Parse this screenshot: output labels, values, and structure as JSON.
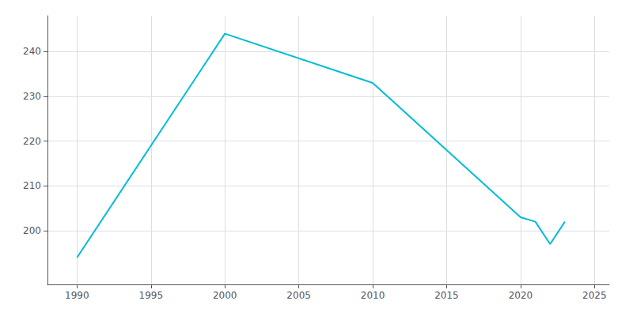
{
  "chart_data": {
    "type": "line",
    "x": [
      1990,
      2000,
      2010,
      2020,
      2021,
      2022,
      2023
    ],
    "values": [
      194,
      244,
      233,
      203,
      202,
      197,
      202
    ],
    "color": "#00bcd4",
    "xlim": [
      1988,
      2026
    ],
    "xticks": [
      1990,
      1995,
      2000,
      2005,
      2010,
      2015,
      2020,
      2025
    ],
    "ylim": [
      188,
      248
    ],
    "yticks": [
      200,
      210,
      220,
      230,
      240
    ],
    "grid": true
  }
}
